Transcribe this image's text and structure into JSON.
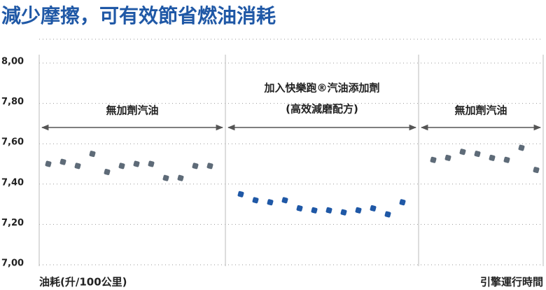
{
  "chart_data": {
    "type": "scatter",
    "title": "減少摩擦，可有效節省燃油消耗",
    "y_label": "油耗(升/100公里)",
    "x_label": "引擎運行時間",
    "ylim": [
      7.0,
      8.0
    ],
    "yticks": [
      {
        "value": 7.0,
        "label": "7,00"
      },
      {
        "value": 7.2,
        "label": "7,20"
      },
      {
        "value": 7.4,
        "label": "7,40"
      },
      {
        "value": 7.6,
        "label": "7,60"
      },
      {
        "value": 7.8,
        "label": "7,80"
      },
      {
        "value": 8.0,
        "label": "8,00"
      }
    ],
    "grid": true,
    "series": [
      {
        "name": "無加劑汽油",
        "color": "#5e6b78",
        "values": [
          7.5,
          7.51,
          7.49,
          7.55,
          7.46,
          7.49,
          7.5,
          7.5,
          7.43,
          7.43,
          7.49,
          7.49
        ]
      },
      {
        "name": "加入快樂跑®汽油添加劑",
        "note": "(高效減磨配方)",
        "color": "#1f58a6",
        "values": [
          7.35,
          7.32,
          7.31,
          7.32,
          7.28,
          7.27,
          7.27,
          7.26,
          7.27,
          7.28,
          7.25,
          7.31
        ]
      },
      {
        "name": "無加劑汽油",
        "color": "#5e6b78",
        "values": [
          7.52,
          7.53,
          7.56,
          7.55,
          7.53,
          7.52,
          7.58,
          7.47
        ]
      }
    ]
  }
}
